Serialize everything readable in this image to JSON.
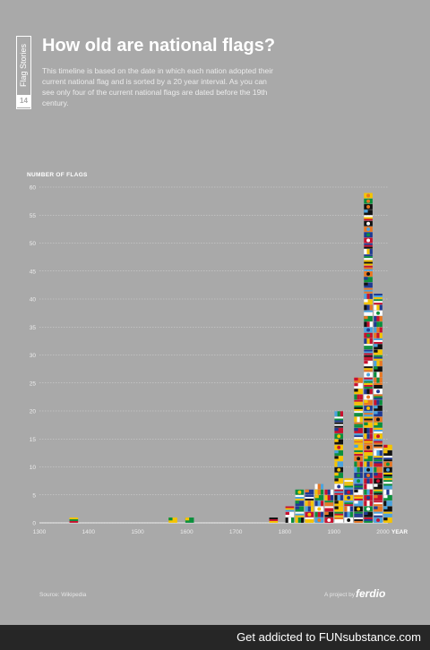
{
  "sidebar": {
    "label": "Flag Stories",
    "number": "14"
  },
  "header": {
    "title": "How old are national flags?",
    "subtitle": "This timeline is based on the date in which each nation adopted their current national flag and is sorted by a 20 year interval. As you can see only four of the current national flags are dated before the 19th century."
  },
  "chart_data": {
    "type": "bar",
    "ylabel": "NUMBER OF FLAGS",
    "xlabel": "YEAR",
    "ylim": [
      0,
      60
    ],
    "yticks": [
      0,
      5,
      10,
      15,
      20,
      25,
      30,
      35,
      40,
      45,
      50,
      55,
      60
    ],
    "xlim": [
      1300,
      2010
    ],
    "xticks": [
      1300,
      1400,
      1500,
      1600,
      1700,
      1800,
      1900,
      2000
    ],
    "grid": true,
    "bin_width_years": 20,
    "bars": [
      {
        "x": 1370,
        "value": 1,
        "flag": "Denmark"
      },
      {
        "x": 1572,
        "value": 1,
        "flag": "Netherlands"
      },
      {
        "x": 1606,
        "value": 1,
        "flag": "United Kingdom"
      },
      {
        "x": 1777,
        "value": 1,
        "flag": "United States"
      },
      {
        "x": 1810,
        "value": 3
      },
      {
        "x": 1830,
        "value": 6
      },
      {
        "x": 1850,
        "value": 6
      },
      {
        "x": 1870,
        "value": 7
      },
      {
        "x": 1890,
        "value": 6
      },
      {
        "x": 1910,
        "value": 20
      },
      {
        "x": 1930,
        "value": 8
      },
      {
        "x": 1950,
        "value": 26
      },
      {
        "x": 1970,
        "value": 59
      },
      {
        "x": 1990,
        "value": 41
      },
      {
        "x": 2010,
        "value": 14
      }
    ]
  },
  "footer": {
    "source": "Source: Wikipedia",
    "project": "A project by",
    "brand": "ferdio",
    "site_text": "Get addicted to FUNsubstance.com"
  },
  "colors": {
    "background": "#a9a9a9",
    "text": "#ffffff",
    "flag_palette": [
      "#c8102e",
      "#ffffff",
      "#1f3a93",
      "#f5c400",
      "#0a8f3c",
      "#111111",
      "#e87722",
      "#4aa3df"
    ]
  }
}
